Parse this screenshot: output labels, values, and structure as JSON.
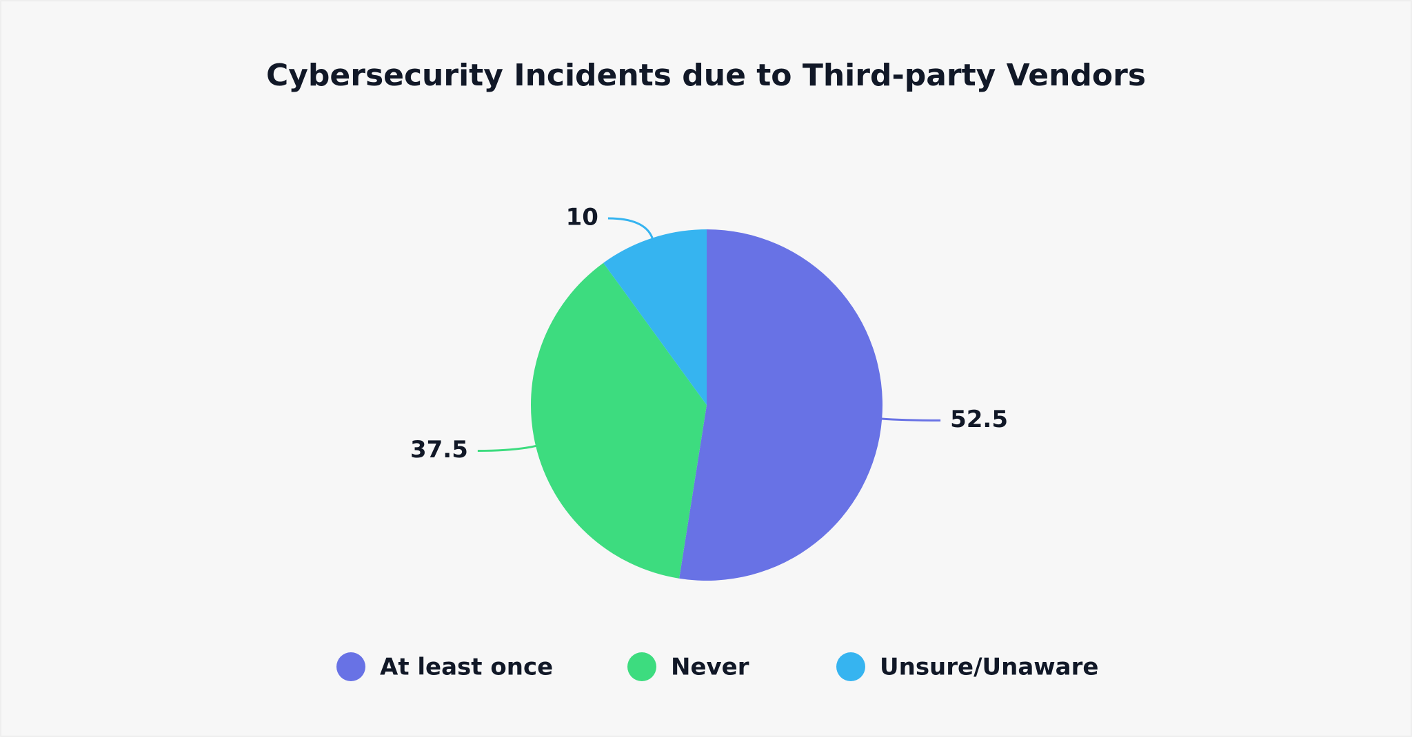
{
  "chart_data": {
    "type": "pie",
    "title": "Cybersecurity Incidents due to Third-party Vendors",
    "categories": [
      "At least once",
      "Never",
      "Unsure/Unaware"
    ],
    "values": [
      52.5,
      37.5,
      10
    ],
    "colors": [
      "#6872e5",
      "#3ddc7f",
      "#36b4f0"
    ]
  }
}
